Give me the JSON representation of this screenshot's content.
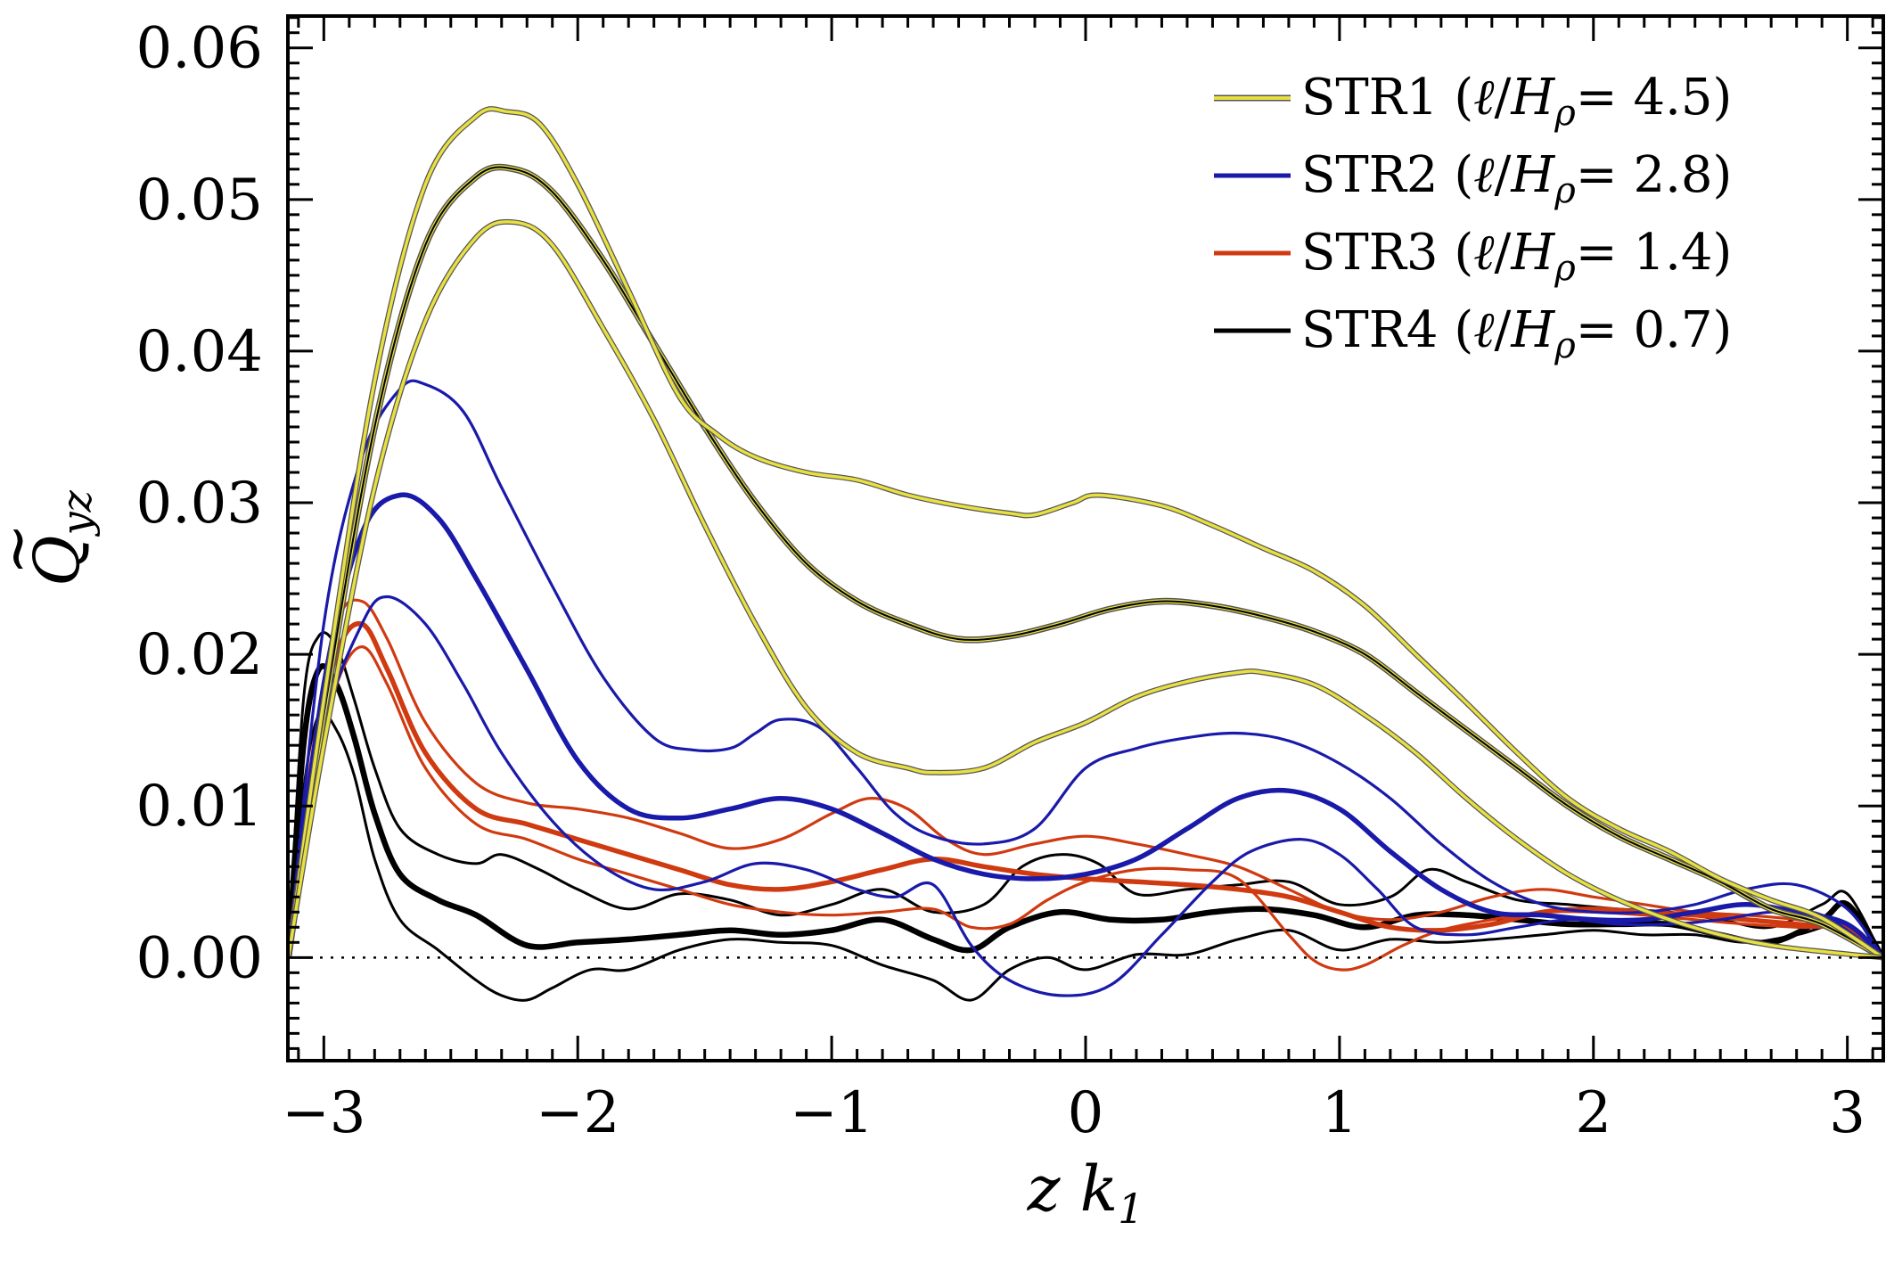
{
  "chart_data": {
    "type": "line",
    "title": "",
    "xlabel": "z  k",
    "xlabel_sub": "1",
    "ylabel": "Q",
    "ylabel_accent": "~",
    "ylabel_sub": "yz",
    "xlim": [
      -3.14159,
      3.14159
    ],
    "ylim": [
      -0.0068,
      0.0621
    ],
    "xticks": [
      -3,
      -2,
      -1,
      0,
      1,
      2,
      3
    ],
    "xtick_labels": [
      "−3",
      "−2",
      "−1",
      "0",
      "1",
      "2",
      "3"
    ],
    "yticks": [
      0.0,
      0.01,
      0.02,
      0.03,
      0.04,
      0.05,
      0.06
    ],
    "ytick_labels": [
      "0.00",
      "0.01",
      "0.02",
      "0.03",
      "0.04",
      "0.05",
      "0.06"
    ],
    "reference_line": {
      "y": 0.0,
      "style": "dotted"
    },
    "legend_position": "top-right",
    "legend": [
      {
        "name": "STR1",
        "paren_open": "(",
        "ell": "ℓ",
        "slash": "/",
        "H": "H",
        "rho": "ρ",
        "eq": "= ",
        "value": "4.5",
        "paren_close": ")",
        "color": "#e8e040",
        "outline": "#555555"
      },
      {
        "name": "STR2",
        "paren_open": "(",
        "ell": "ℓ",
        "slash": "/",
        "H": "H",
        "rho": "ρ",
        "eq": "= ",
        "value": "2.8",
        "paren_close": ")",
        "color": "#1a1aaa",
        "outline": ""
      },
      {
        "name": "STR3",
        "paren_open": "(",
        "ell": "ℓ",
        "slash": "/",
        "H": "H",
        "rho": "ρ",
        "eq": "= ",
        "value": "1.4",
        "paren_close": ")",
        "color": "#d03a10",
        "outline": ""
      },
      {
        "name": "STR4",
        "paren_open": "(",
        "ell": "ℓ",
        "slash": "/",
        "H": "H",
        "rho": "ρ",
        "eq": "= ",
        "value": "0.7",
        "paren_close": ")",
        "color": "#000000",
        "outline": ""
      }
    ],
    "series": [
      {
        "name": "STR1 mean",
        "group": 0,
        "kind": "mean",
        "x": [
          -3.14,
          -3.0,
          -2.8,
          -2.6,
          -2.4,
          -2.25,
          -2.1,
          -1.9,
          -1.7,
          -1.5,
          -1.3,
          -1.1,
          -0.9,
          -0.7,
          -0.5,
          -0.3,
          -0.1,
          0.1,
          0.3,
          0.5,
          0.7,
          0.9,
          1.1,
          1.3,
          1.5,
          1.7,
          1.9,
          2.1,
          2.3,
          2.5,
          2.7,
          2.9,
          3.14
        ],
        "y": [
          0.0,
          0.016,
          0.035,
          0.047,
          0.0515,
          0.052,
          0.0505,
          0.046,
          0.0405,
          0.035,
          0.03,
          0.026,
          0.0235,
          0.022,
          0.021,
          0.0212,
          0.022,
          0.023,
          0.0235,
          0.0232,
          0.0225,
          0.0215,
          0.02,
          0.0175,
          0.015,
          0.0125,
          0.01,
          0.008,
          0.0065,
          0.005,
          0.0032,
          0.0022,
          0.0
        ]
      },
      {
        "name": "STR1 upper",
        "group": 0,
        "kind": "bound",
        "x": [
          -3.14,
          -3.0,
          -2.8,
          -2.6,
          -2.4,
          -2.28,
          -2.15,
          -2.0,
          -1.8,
          -1.6,
          -1.45,
          -1.3,
          -1.1,
          -0.9,
          -0.7,
          -0.5,
          -0.3,
          -0.2,
          -0.05,
          0.05,
          0.3,
          0.5,
          0.7,
          0.9,
          1.1,
          1.3,
          1.5,
          1.7,
          1.9,
          2.1,
          2.3,
          2.5,
          2.7,
          2.9,
          3.14
        ],
        "y": [
          0.0,
          0.017,
          0.038,
          0.051,
          0.0555,
          0.0558,
          0.055,
          0.051,
          0.044,
          0.037,
          0.0345,
          0.033,
          0.032,
          0.0315,
          0.0305,
          0.0298,
          0.0293,
          0.0292,
          0.03,
          0.0305,
          0.0298,
          0.0285,
          0.027,
          0.0255,
          0.0232,
          0.02,
          0.0168,
          0.0135,
          0.0105,
          0.0085,
          0.007,
          0.0052,
          0.0038,
          0.0026,
          0.0
        ]
      },
      {
        "name": "STR1 lower",
        "group": 0,
        "kind": "bound",
        "x": [
          -3.14,
          -3.0,
          -2.8,
          -2.6,
          -2.4,
          -2.25,
          -2.1,
          -1.9,
          -1.7,
          -1.5,
          -1.3,
          -1.1,
          -0.9,
          -0.7,
          -0.6,
          -0.4,
          -0.2,
          0.0,
          0.2,
          0.4,
          0.6,
          0.7,
          0.9,
          1.1,
          1.3,
          1.5,
          1.7,
          1.9,
          2.1,
          2.3,
          2.5,
          2.7,
          2.9,
          3.14
        ],
        "y": [
          0.0,
          0.014,
          0.031,
          0.042,
          0.0475,
          0.0485,
          0.047,
          0.0415,
          0.0355,
          0.0285,
          0.022,
          0.0165,
          0.0135,
          0.0125,
          0.0122,
          0.0125,
          0.0142,
          0.0155,
          0.0172,
          0.0182,
          0.0188,
          0.0188,
          0.018,
          0.016,
          0.0135,
          0.0105,
          0.0078,
          0.0055,
          0.0038,
          0.0025,
          0.0015,
          0.0008,
          0.0004,
          0.0
        ]
      },
      {
        "name": "STR2 mean",
        "group": 1,
        "kind": "mean",
        "x": [
          -3.14,
          -3.0,
          -2.85,
          -2.7,
          -2.55,
          -2.4,
          -2.2,
          -2.0,
          -1.8,
          -1.6,
          -1.4,
          -1.2,
          -1.0,
          -0.8,
          -0.6,
          -0.4,
          -0.2,
          0.0,
          0.2,
          0.4,
          0.6,
          0.8,
          1.0,
          1.2,
          1.4,
          1.6,
          1.8,
          2.0,
          2.2,
          2.4,
          2.6,
          2.8,
          3.0,
          3.14
        ],
        "y": [
          0.0,
          0.018,
          0.028,
          0.0305,
          0.029,
          0.025,
          0.019,
          0.013,
          0.0098,
          0.0092,
          0.0098,
          0.0105,
          0.0098,
          0.0082,
          0.0065,
          0.0055,
          0.0052,
          0.0055,
          0.0065,
          0.0085,
          0.0105,
          0.011,
          0.0098,
          0.007,
          0.0045,
          0.003,
          0.0028,
          0.0025,
          0.0025,
          0.003,
          0.0035,
          0.003,
          0.0022,
          0.0
        ]
      },
      {
        "name": "STR2 upper",
        "group": 1,
        "kind": "bound",
        "x": [
          -3.14,
          -3.0,
          -2.85,
          -2.7,
          -2.6,
          -2.45,
          -2.3,
          -2.1,
          -1.9,
          -1.7,
          -1.55,
          -1.4,
          -1.3,
          -1.2,
          -1.05,
          -0.9,
          -0.75,
          -0.6,
          -0.4,
          -0.2,
          0.0,
          0.2,
          0.4,
          0.6,
          0.8,
          1.0,
          1.2,
          1.4,
          1.6,
          1.8,
          2.0,
          2.2,
          2.4,
          2.6,
          2.8,
          3.0,
          3.14
        ],
        "y": [
          0.0,
          0.022,
          0.033,
          0.0375,
          0.0378,
          0.036,
          0.031,
          0.0245,
          0.0185,
          0.0145,
          0.0137,
          0.0138,
          0.0148,
          0.0157,
          0.0152,
          0.0125,
          0.0095,
          0.008,
          0.0075,
          0.0085,
          0.0125,
          0.0138,
          0.0145,
          0.0148,
          0.0143,
          0.0128,
          0.0105,
          0.0075,
          0.005,
          0.0035,
          0.003,
          0.003,
          0.0035,
          0.0045,
          0.0048,
          0.0032,
          0.0
        ]
      },
      {
        "name": "STR2 lower",
        "group": 1,
        "kind": "bound",
        "x": [
          -3.14,
          -3.0,
          -2.85,
          -2.75,
          -2.6,
          -2.45,
          -2.3,
          -2.1,
          -1.9,
          -1.7,
          -1.5,
          -1.3,
          -1.1,
          -0.9,
          -0.75,
          -0.6,
          -0.45,
          -0.3,
          -0.1,
          0.1,
          0.3,
          0.5,
          0.65,
          0.85,
          1.0,
          1.15,
          1.3,
          1.5,
          1.7,
          1.9,
          2.1,
          2.3,
          2.5,
          2.7,
          2.9,
          3.14
        ],
        "y": [
          0.0,
          0.015,
          0.022,
          0.0238,
          0.022,
          0.018,
          0.0135,
          0.009,
          0.006,
          0.0045,
          0.005,
          0.0062,
          0.0058,
          0.0045,
          0.004,
          0.0048,
          0.0008,
          -0.0015,
          -0.0025,
          -0.0018,
          0.0015,
          0.005,
          0.007,
          0.0078,
          0.0068,
          0.0045,
          0.002,
          0.0015,
          0.002,
          0.0025,
          0.0022,
          0.0022,
          0.0025,
          0.003,
          0.0028,
          0.0
        ]
      },
      {
        "name": "STR3 mean",
        "group": 2,
        "kind": "mean",
        "x": [
          -3.14,
          -3.05,
          -2.95,
          -2.85,
          -2.75,
          -2.6,
          -2.4,
          -2.2,
          -2.0,
          -1.8,
          -1.6,
          -1.4,
          -1.2,
          -1.0,
          -0.8,
          -0.6,
          -0.4,
          -0.2,
          0.0,
          0.2,
          0.4,
          0.6,
          0.8,
          1.0,
          1.2,
          1.4,
          1.6,
          1.8,
          2.0,
          2.2,
          2.4,
          2.6,
          2.8,
          3.0,
          3.14
        ],
        "y": [
          0.0,
          0.012,
          0.02,
          0.022,
          0.019,
          0.0135,
          0.0098,
          0.0088,
          0.0078,
          0.0068,
          0.0058,
          0.0048,
          0.0045,
          0.005,
          0.0058,
          0.0065,
          0.006,
          0.0055,
          0.0052,
          0.005,
          0.0048,
          0.0045,
          0.004,
          0.003,
          0.002,
          0.0018,
          0.0022,
          0.003,
          0.0032,
          0.003,
          0.0028,
          0.0025,
          0.0022,
          0.0018,
          0.0
        ]
      },
      {
        "name": "STR3 upper",
        "group": 2,
        "kind": "bound",
        "x": [
          -3.14,
          -3.05,
          -2.95,
          -2.85,
          -2.75,
          -2.6,
          -2.4,
          -2.2,
          -2.0,
          -1.8,
          -1.6,
          -1.4,
          -1.2,
          -1.0,
          -0.85,
          -0.7,
          -0.55,
          -0.4,
          -0.2,
          0.0,
          0.2,
          0.4,
          0.6,
          0.8,
          1.0,
          1.2,
          1.4,
          1.6,
          1.8,
          2.0,
          2.2,
          2.4,
          2.6,
          2.8,
          3.0,
          3.14
        ],
        "y": [
          0.0,
          0.013,
          0.022,
          0.0235,
          0.021,
          0.0155,
          0.0115,
          0.0102,
          0.0098,
          0.0092,
          0.0082,
          0.0072,
          0.0078,
          0.0095,
          0.0105,
          0.0098,
          0.0078,
          0.0068,
          0.0075,
          0.008,
          0.0075,
          0.0068,
          0.006,
          0.0045,
          0.003,
          0.0025,
          0.003,
          0.004,
          0.0045,
          0.004,
          0.0035,
          0.003,
          0.0028,
          0.0025,
          0.002,
          0.0
        ]
      },
      {
        "name": "STR3 lower",
        "group": 2,
        "kind": "bound",
        "x": [
          -3.14,
          -3.05,
          -2.95,
          -2.85,
          -2.75,
          -2.6,
          -2.4,
          -2.2,
          -2.0,
          -1.8,
          -1.6,
          -1.4,
          -1.2,
          -1.0,
          -0.8,
          -0.6,
          -0.45,
          -0.3,
          -0.15,
          0.0,
          0.2,
          0.4,
          0.6,
          0.8,
          0.9,
          1.0,
          1.1,
          1.25,
          1.4,
          1.6,
          1.8,
          2.0,
          2.2,
          2.4,
          2.6,
          2.8,
          3.0,
          3.14
        ],
        "y": [
          0.0,
          0.011,
          0.018,
          0.0205,
          0.018,
          0.0125,
          0.0088,
          0.0078,
          0.0065,
          0.0055,
          0.0045,
          0.0035,
          0.003,
          0.0028,
          0.003,
          0.0032,
          0.002,
          0.0022,
          0.0038,
          0.005,
          0.0058,
          0.0058,
          0.0052,
          0.0015,
          -0.0002,
          -0.0008,
          -0.0005,
          0.0008,
          0.0018,
          0.0025,
          0.003,
          0.003,
          0.0028,
          0.0025,
          0.0022,
          0.002,
          0.0018,
          0.0
        ]
      },
      {
        "name": "STR4 mean",
        "group": 3,
        "kind": "mean",
        "x": [
          -3.14,
          -3.08,
          -3.02,
          -2.95,
          -2.88,
          -2.8,
          -2.7,
          -2.55,
          -2.4,
          -2.2,
          -2.0,
          -1.8,
          -1.6,
          -1.4,
          -1.2,
          -1.0,
          -0.8,
          -0.6,
          -0.45,
          -0.3,
          -0.1,
          0.1,
          0.3,
          0.5,
          0.7,
          0.9,
          1.1,
          1.3,
          1.5,
          1.7,
          1.9,
          2.1,
          2.3,
          2.5,
          2.7,
          2.9,
          3.0,
          3.14
        ],
        "y": [
          0.0,
          0.014,
          0.019,
          0.018,
          0.0145,
          0.0095,
          0.0055,
          0.0038,
          0.0028,
          0.0008,
          0.001,
          0.0012,
          0.0015,
          0.0018,
          0.0015,
          0.0018,
          0.0025,
          0.0012,
          0.0005,
          0.002,
          0.003,
          0.0025,
          0.0025,
          0.003,
          0.0032,
          0.0028,
          0.002,
          0.0028,
          0.0028,
          0.0025,
          0.0022,
          0.0022,
          0.0022,
          0.0015,
          0.001,
          0.0025,
          0.0035,
          0.0
        ]
      },
      {
        "name": "STR4 upper",
        "group": 3,
        "kind": "bound",
        "x": [
          -3.14,
          -3.08,
          -3.02,
          -2.95,
          -2.88,
          -2.8,
          -2.7,
          -2.55,
          -2.4,
          -2.3,
          -2.15,
          -2.0,
          -1.8,
          -1.6,
          -1.4,
          -1.2,
          -1.0,
          -0.8,
          -0.6,
          -0.4,
          -0.25,
          -0.1,
          0.05,
          0.2,
          0.4,
          0.6,
          0.8,
          1.0,
          1.2,
          1.35,
          1.5,
          1.7,
          1.9,
          2.1,
          2.3,
          2.5,
          2.7,
          2.9,
          3.0,
          3.14
        ],
        "y": [
          0.0,
          0.017,
          0.0212,
          0.0205,
          0.017,
          0.0125,
          0.0085,
          0.0068,
          0.0062,
          0.0068,
          0.0058,
          0.0045,
          0.0032,
          0.0042,
          0.0038,
          0.0028,
          0.0035,
          0.0045,
          0.003,
          0.0035,
          0.006,
          0.0068,
          0.0062,
          0.0042,
          0.0045,
          0.0048,
          0.005,
          0.0035,
          0.004,
          0.0058,
          0.005,
          0.0038,
          0.0035,
          0.0032,
          0.003,
          0.0025,
          0.002,
          0.0035,
          0.0042,
          0.0
        ]
      },
      {
        "name": "STR4 lower",
        "group": 3,
        "kind": "bound",
        "x": [
          -3.14,
          -3.08,
          -3.02,
          -2.95,
          -2.88,
          -2.8,
          -2.7,
          -2.55,
          -2.4,
          -2.3,
          -2.2,
          -2.1,
          -1.95,
          -1.8,
          -1.6,
          -1.4,
          -1.2,
          -1.0,
          -0.8,
          -0.6,
          -0.45,
          -0.3,
          -0.15,
          0.0,
          0.2,
          0.4,
          0.6,
          0.8,
          1.0,
          1.2,
          1.4,
          1.6,
          1.8,
          2.0,
          2.2,
          2.4,
          2.6,
          2.8,
          3.0,
          3.14
        ],
        "y": [
          0.0,
          0.011,
          0.016,
          0.015,
          0.012,
          0.0065,
          0.0025,
          0.0005,
          -0.0015,
          -0.0025,
          -0.0028,
          -0.002,
          -0.0008,
          -0.0008,
          0.0005,
          0.0012,
          0.001,
          0.0008,
          -0.0005,
          -0.0015,
          -0.0028,
          -0.0008,
          0.0,
          -0.0008,
          0.0002,
          0.0002,
          0.0012,
          0.0018,
          0.0005,
          0.0012,
          0.001,
          0.0012,
          0.0015,
          0.0018,
          0.0015,
          0.0015,
          0.001,
          0.0015,
          0.0022,
          0.0
        ]
      }
    ]
  }
}
